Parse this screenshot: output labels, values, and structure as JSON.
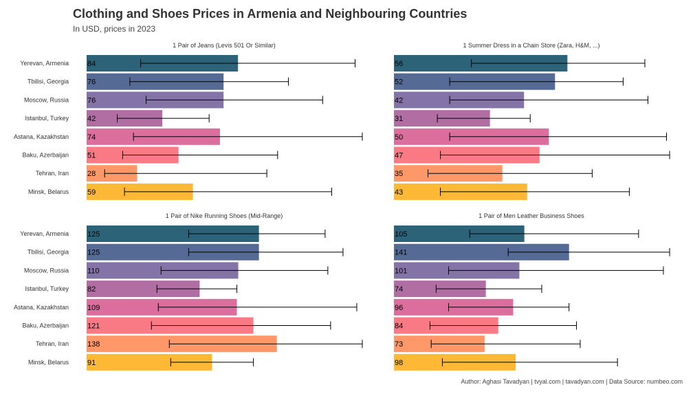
{
  "title": "Clothing and Shoes Prices in Armenia and Neighbouring Countries",
  "subtitle": "In USD, prices in 2023",
  "caption": "Author: Aghasi Tavadyan   |   tvyal.com   |   tavadyan.com   |   Data Source: numbeo.com",
  "colors": [
    "#2d6379",
    "#556b95",
    "#8473a6",
    "#b06ea3",
    "#dc6e9d",
    "#f97a85",
    "#fe9869",
    "#fdb935"
  ],
  "chart_data": [
    {
      "type": "bar",
      "title": "1 Pair of Jeans (Levis 501 Or Similar)",
      "categories": [
        "Yerevan, Armenia",
        "Tbilisi, Georgia",
        "Moscow, Russia",
        "Istanbul, Turkey",
        "Astana, Kazakhstan",
        "Baku, Azerbaijan",
        "Tehran, Iran",
        "Minsk, Belarus"
      ],
      "values": [
        84,
        76,
        76,
        42,
        74,
        51,
        28,
        59
      ],
      "ranges": [
        [
          30,
          149
        ],
        [
          24,
          112
        ],
        [
          33,
          131
        ],
        [
          17,
          68
        ],
        [
          26,
          153
        ],
        [
          20,
          106
        ],
        [
          10,
          100
        ],
        [
          21,
          136
        ]
      ]
    },
    {
      "type": "bar",
      "title": "1 Summer Dress in a Chain Store (Zara, H&M, ...)",
      "categories": [
        "Yerevan, Armenia",
        "Tbilisi, Georgia",
        "Moscow, Russia",
        "Istanbul, Turkey",
        "Astana, Kazakhstan",
        "Baku, Azerbaijan",
        "Tehran, Iran",
        "Minsk, Belarus"
      ],
      "values": [
        56,
        52,
        42,
        31,
        50,
        47,
        35,
        43
      ],
      "ranges": [
        [
          25,
          81
        ],
        [
          18,
          74
        ],
        [
          18,
          82
        ],
        [
          14,
          44
        ],
        [
          18,
          88
        ],
        [
          15,
          89
        ],
        [
          11,
          64
        ],
        [
          15,
          76
        ]
      ]
    },
    {
      "type": "bar",
      "title": "1 Pair of Nike Running Shoes (Mid-Range)",
      "categories": [
        "Yerevan, Armenia",
        "Tbilisi, Georgia",
        "Moscow, Russia",
        "Istanbul, Turkey",
        "Astana, Kazakhstan",
        "Baku, Azerbaijan",
        "Tehran, Iran",
        "Minsk, Belarus"
      ],
      "values": [
        125,
        125,
        110,
        82,
        109,
        121,
        138,
        91
      ],
      "ranges": [
        [
          74,
          173
        ],
        [
          74,
          186
        ],
        [
          54,
          175
        ],
        [
          51,
          109
        ],
        [
          52,
          196
        ],
        [
          47,
          177
        ],
        [
          60,
          200
        ],
        [
          61,
          121
        ]
      ]
    },
    {
      "type": "bar",
      "title": "1 Pair of Men Leather Business Shoes",
      "categories": [
        "Yerevan, Armenia",
        "Tbilisi, Georgia",
        "Moscow, Russia",
        "Istanbul, Turkey",
        "Astana, Kazakhstan",
        "Baku, Azerbaijan",
        "Tehran, Iran",
        "Minsk, Belarus"
      ],
      "values": [
        105,
        141,
        101,
        74,
        96,
        84,
        73,
        98
      ],
      "ranges": [
        [
          61,
          197
        ],
        [
          92,
          222
        ],
        [
          44,
          217
        ],
        [
          34,
          119
        ],
        [
          44,
          141
        ],
        [
          29,
          147
        ],
        [
          30,
          150
        ],
        [
          39,
          180
        ]
      ]
    }
  ]
}
